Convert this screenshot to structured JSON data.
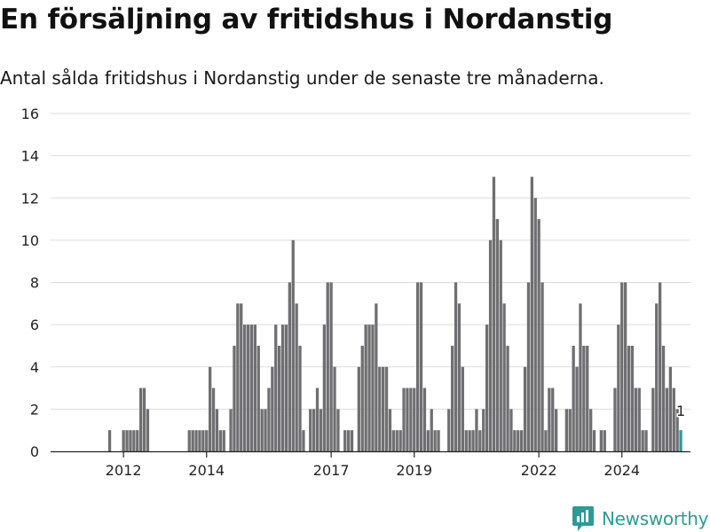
{
  "title": "En försäljning av fritidshus i Nordanstig",
  "subtitle": "Antal sålda fritidshus i Nordanstig under de senaste tre månaderna.",
  "brand": {
    "name": "Newsworthy",
    "icon": "newsworthy-logo-icon"
  },
  "colors": {
    "bar": "#6f6f73",
    "highlight": "#2e9a96",
    "grid": "#dddddd",
    "axis": "#222222",
    "text": "#222222"
  },
  "chart_data": {
    "type": "bar",
    "title": "En försäljning av fritidshus i Nordanstig",
    "subtitle": "Antal sålda fritidshus i Nordanstig under de senaste tre månaderna.",
    "xlabel": "",
    "ylabel": "",
    "x_unit": "month",
    "start": "2011-01",
    "ylim": [
      0,
      16
    ],
    "yticks": [
      0,
      2,
      4,
      6,
      8,
      10,
      12,
      14,
      16
    ],
    "xticks": [
      "2012",
      "2014",
      "2017",
      "2019",
      "2022",
      "2024"
    ],
    "grid": true,
    "highlight_label": "1",
    "values": [
      0,
      0,
      0,
      0,
      0,
      0,
      0,
      0,
      1,
      0,
      0,
      0,
      1,
      1,
      1,
      1,
      1,
      3,
      3,
      2,
      0,
      0,
      0,
      0,
      0,
      0,
      0,
      0,
      0,
      0,
      0,
      1,
      1,
      1,
      1,
      1,
      1,
      4,
      3,
      2,
      1,
      1,
      0,
      2,
      5,
      7,
      7,
      6,
      6,
      6,
      6,
      5,
      2,
      2,
      3,
      4,
      6,
      5,
      6,
      6,
      8,
      10,
      7,
      5,
      1,
      0,
      2,
      2,
      3,
      2,
      6,
      8,
      8,
      4,
      2,
      0,
      1,
      1,
      1,
      0,
      4,
      5,
      6,
      6,
      6,
      7,
      4,
      4,
      4,
      2,
      1,
      1,
      1,
      3,
      3,
      3,
      3,
      8,
      8,
      3,
      1,
      2,
      1,
      1,
      0,
      0,
      2,
      5,
      8,
      7,
      4,
      1,
      1,
      1,
      2,
      1,
      2,
      6,
      10,
      13,
      11,
      10,
      7,
      5,
      2,
      1,
      1,
      1,
      4,
      8,
      13,
      12,
      11,
      8,
      1,
      3,
      3,
      2,
      0,
      0,
      2,
      2,
      5,
      4,
      7,
      5,
      5,
      2,
      1,
      0,
      1,
      1,
      0,
      0,
      3,
      6,
      8,
      8,
      5,
      5,
      3,
      3,
      1,
      1,
      0,
      3,
      7,
      8,
      5,
      3,
      4,
      3,
      2,
      1
    ]
  }
}
